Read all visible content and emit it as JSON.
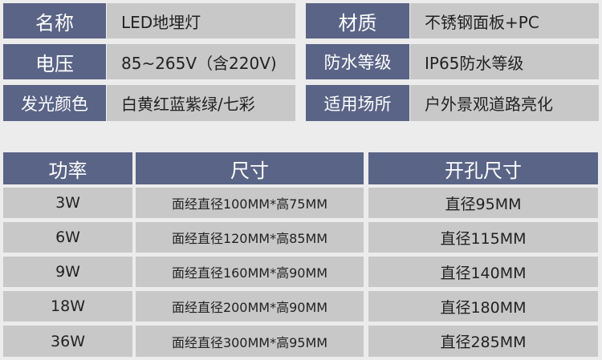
{
  "specs": [
    {
      "label": "名称",
      "value": "LED地埋灯"
    },
    {
      "label": "材质",
      "value": "不锈钢面板+PC"
    },
    {
      "label": "电压",
      "value": "85~265V（含220V)"
    },
    {
      "label": "防水等级",
      "value": "IP65防水等级"
    },
    {
      "label": "发光颜色",
      "value": "白黄红蓝紫绿/七彩"
    },
    {
      "label": "适用场所",
      "value": "户外景观道路亮化"
    }
  ],
  "table": {
    "headers": [
      "功率",
      "尺寸",
      "开孔尺寸"
    ],
    "rows": [
      [
        "3W",
        "面经直径100MM*高75MM",
        "直径95MM"
      ],
      [
        "6W",
        "面经直径120MM*高85MM",
        "直径115MM"
      ],
      [
        "9W",
        "面经直径160MM*高90MM",
        "直径140MM"
      ],
      [
        "18W",
        "面经直径200MM*高90MM",
        "直径180MM"
      ],
      [
        "36W",
        "面经直径300MM*高95MM",
        "直径285MM"
      ]
    ]
  }
}
